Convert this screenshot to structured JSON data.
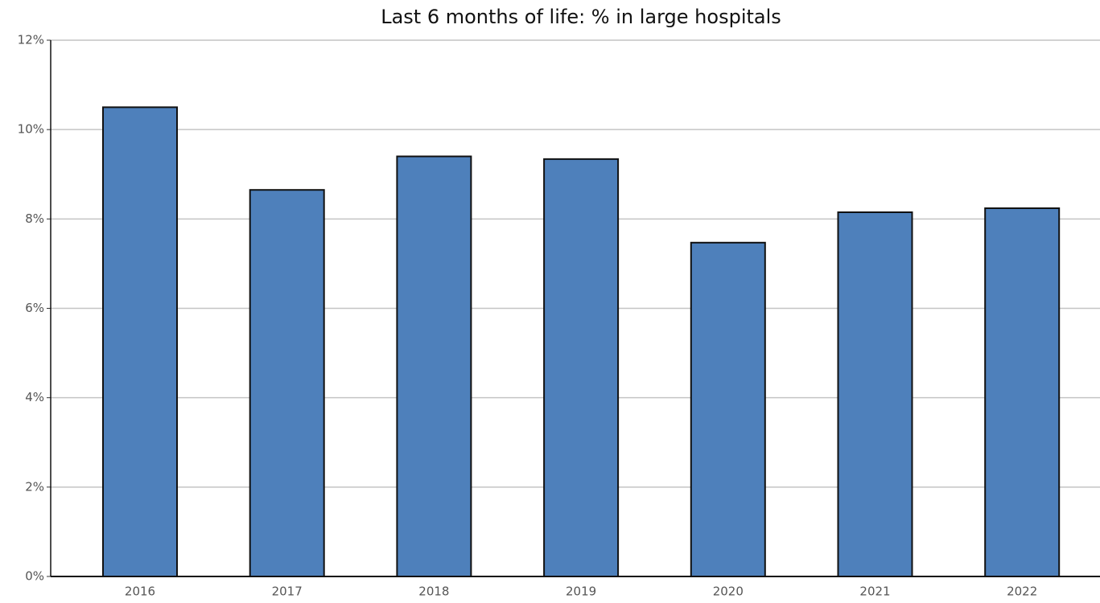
{
  "chart_data": {
    "type": "bar",
    "title": "Last 6 months of life: % in large hospitals",
    "categories": [
      "2016",
      "2017",
      "2018",
      "2019",
      "2020",
      "2021",
      "2022"
    ],
    "values": [
      10.5,
      8.65,
      9.4,
      9.34,
      7.47,
      8.15,
      8.24
    ],
    "color": "#4e80bb",
    "ylim": [
      0,
      12
    ],
    "yticks": [
      {
        "value": 0,
        "label": "0%"
      },
      {
        "value": 2,
        "label": "2%"
      },
      {
        "value": 4,
        "label": "4%"
      },
      {
        "value": 6,
        "label": "6%"
      },
      {
        "value": 8,
        "label": "8%"
      },
      {
        "value": 10,
        "label": "10%"
      },
      {
        "value": 12,
        "label": "12%"
      }
    ],
    "grid": true
  }
}
